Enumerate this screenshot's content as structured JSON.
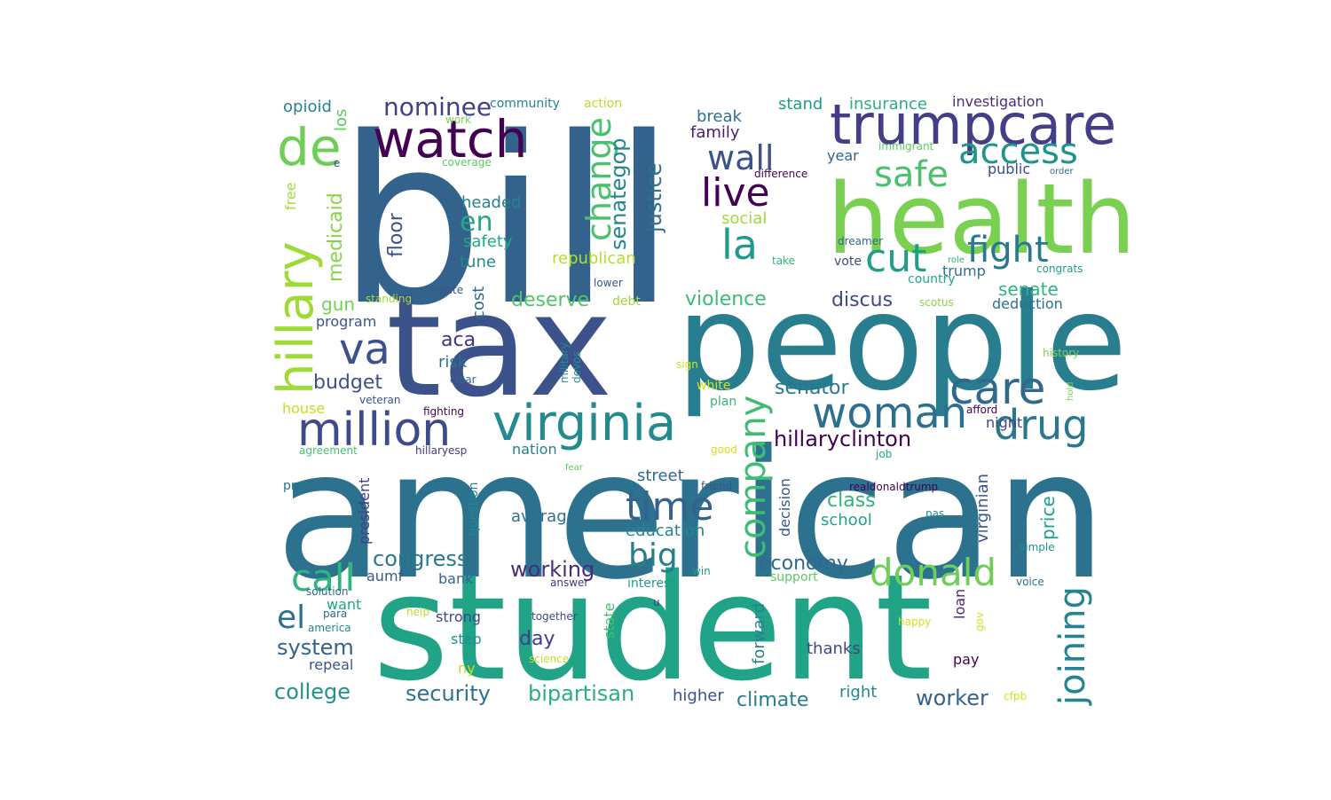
{
  "words": [
    {
      "text": "bill",
      "color": "#33638d"
    },
    {
      "text": "american",
      "color": "#2c728e"
    },
    {
      "text": "student",
      "color": "#20a386"
    },
    {
      "text": "tax",
      "color": "#3b528b"
    },
    {
      "text": "people",
      "color": "#287d8e"
    },
    {
      "text": "health",
      "color": "#7ad151"
    },
    {
      "text": "trumpcare",
      "color": "#433e85"
    },
    {
      "text": "watch",
      "color": "#440154"
    },
    {
      "text": "virginia",
      "color": "#238a8d"
    },
    {
      "text": "million",
      "color": "#3e4a89"
    },
    {
      "text": "woman",
      "color": "#2d708e"
    },
    {
      "text": "care",
      "color": "#31688e"
    },
    {
      "text": "de",
      "color": "#6ece58"
    },
    {
      "text": "access",
      "color": "#1f948c"
    },
    {
      "text": "safe",
      "color": "#4ac16d"
    },
    {
      "text": "live",
      "color": "#440154"
    },
    {
      "text": "la",
      "color": "#1e9b8a"
    },
    {
      "text": "cut",
      "color": "#1f9e89"
    },
    {
      "text": "fight",
      "color": "#2a788e"
    },
    {
      "text": "drug",
      "color": "#2a788e"
    },
    {
      "text": "va",
      "color": "#3b528b"
    },
    {
      "text": "hillary",
      "color": "#a0da39"
    },
    {
      "text": "company",
      "color": "#3fbc73"
    },
    {
      "text": "change",
      "color": "#4ac16d"
    },
    {
      "text": "time",
      "color": "#34618d"
    },
    {
      "text": "donald",
      "color": "#6ece58"
    },
    {
      "text": "call",
      "color": "#2fb47c"
    },
    {
      "text": "joining",
      "color": "#25858e"
    },
    {
      "text": "big",
      "color": "#277f8e"
    },
    {
      "text": "el",
      "color": "#2d708e"
    },
    {
      "text": "wall",
      "color": "#3b528b"
    },
    {
      "text": "en",
      "color": "#22a884"
    },
    {
      "text": "nominee",
      "color": "#424186"
    },
    {
      "text": "senategop",
      "color": "#25858e"
    },
    {
      "text": "justice",
      "color": "#2c728e"
    },
    {
      "text": "hillaryclinton",
      "color": "#440154"
    },
    {
      "text": "congress",
      "color": "#2a788e"
    },
    {
      "text": "working",
      "color": "#472d7b"
    },
    {
      "text": "economy",
      "color": "#31688e"
    },
    {
      "text": "security",
      "color": "#2c728e"
    },
    {
      "text": "bipartisan",
      "color": "#2ab07f"
    },
    {
      "text": "college",
      "color": "#21918c"
    },
    {
      "text": "climate",
      "color": "#287c8e"
    },
    {
      "text": "worker",
      "color": "#33638d"
    },
    {
      "text": "system",
      "color": "#33638d"
    },
    {
      "text": "violence",
      "color": "#3bbb75"
    },
    {
      "text": "deserve",
      "color": "#52c569"
    },
    {
      "text": "discus",
      "color": "#3e4989"
    },
    {
      "text": "senate",
      "color": "#2fb47c"
    },
    {
      "text": "senator",
      "color": "#2a788e"
    },
    {
      "text": "budget",
      "color": "#3b528b"
    },
    {
      "text": "day",
      "color": "#433e85"
    },
    {
      "text": "aca",
      "color": "#46327e"
    },
    {
      "text": "floor",
      "color": "#3b528b"
    },
    {
      "text": "headed",
      "color": "#26828e"
    },
    {
      "text": "class",
      "color": "#2fb47c"
    },
    {
      "text": "medicaid",
      "color": "#86d549"
    },
    {
      "text": "street",
      "color": "#31688e"
    },
    {
      "text": "average",
      "color": "#2d708e"
    },
    {
      "text": "education",
      "color": "#25858e"
    },
    {
      "text": "price",
      "color": "#1f9e89"
    },
    {
      "text": "virginian",
      "color": "#3b528b"
    },
    {
      "text": "safety",
      "color": "#22a884"
    },
    {
      "text": "tune",
      "color": "#23898e"
    },
    {
      "text": "republican",
      "color": "#b5de2b"
    },
    {
      "text": "cost",
      "color": "#31688e"
    },
    {
      "text": "gun",
      "color": "#73d056"
    },
    {
      "text": "program",
      "color": "#39568c"
    },
    {
      "text": "risk",
      "color": "#2c728e"
    },
    {
      "text": "stand",
      "color": "#1e9b8a"
    },
    {
      "text": "insurance",
      "color": "#28ae80"
    },
    {
      "text": "investigation",
      "color": "#472d7b"
    },
    {
      "text": "opioid",
      "color": "#26828e"
    },
    {
      "text": "los",
      "color": "#5ec962"
    },
    {
      "text": "break",
      "color": "#2d708e"
    },
    {
      "text": "family",
      "color": "#481f70"
    },
    {
      "text": "year",
      "color": "#33638d"
    },
    {
      "text": "public",
      "color": "#3e4a89"
    },
    {
      "text": "social",
      "color": "#a0da39"
    },
    {
      "text": "trump",
      "color": "#2d708e"
    },
    {
      "text": "deduction",
      "color": "#2c728e"
    },
    {
      "text": "night",
      "color": "#414487"
    },
    {
      "text": "school",
      "color": "#20a386"
    },
    {
      "text": "decision",
      "color": "#39568c"
    },
    {
      "text": "forward",
      "color": "#26828e"
    },
    {
      "text": "thanks",
      "color": "#3e4989"
    },
    {
      "text": "right",
      "color": "#23898e"
    },
    {
      "text": "higher",
      "color": "#3b528b"
    },
    {
      "text": "pay",
      "color": "#440154"
    },
    {
      "text": "loan",
      "color": "#482878"
    },
    {
      "text": "interest",
      "color": "#1f9e89"
    },
    {
      "text": "support",
      "color": "#5ec962"
    },
    {
      "text": "bank",
      "color": "#31688e"
    },
    {
      "text": "aumf",
      "color": "#38598c"
    },
    {
      "text": "want",
      "color": "#20a386"
    },
    {
      "text": "strong",
      "color": "#3e4989"
    },
    {
      "text": "step",
      "color": "#21918c"
    },
    {
      "text": "repeal",
      "color": "#3b528b"
    },
    {
      "text": "ny",
      "color": "#c2df23"
    },
    {
      "text": "state",
      "color": "#44bf70"
    },
    {
      "text": "president",
      "color": "#433e85"
    },
    {
      "text": "question",
      "color": "#25858e"
    },
    {
      "text": "nation",
      "color": "#287d8e"
    },
    {
      "text": "house",
      "color": "#c2df23"
    },
    {
      "text": "protect",
      "color": "#2c728e"
    },
    {
      "text": "free",
      "color": "#a0da39"
    },
    {
      "text": "community",
      "color": "#26828e"
    },
    {
      "text": "action",
      "color": "#b5de2b"
    },
    {
      "text": "white",
      "color": "#d2e21b"
    },
    {
      "text": "plan",
      "color": "#35b779"
    },
    {
      "text": "debt",
      "color": "#a0da39"
    },
    {
      "text": "good",
      "color": "#d2e21b"
    },
    {
      "text": "job",
      "color": "#20a386"
    },
    {
      "text": "history",
      "color": "#7ad151"
    },
    {
      "text": "country",
      "color": "#22a884"
    },
    {
      "text": "vote",
      "color": "#3e4989"
    },
    {
      "text": "dreamer",
      "color": "#31688e"
    },
    {
      "text": "congrats",
      "color": "#1f9e89"
    },
    {
      "text": "role",
      "color": "#2fb47c"
    },
    {
      "text": "take",
      "color": "#2fb47c"
    },
    {
      "text": "scotus",
      "color": "#86d549"
    },
    {
      "text": "immigrant",
      "color": "#5ec962"
    },
    {
      "text": "coverage",
      "color": "#5ec962"
    },
    {
      "text": "difference",
      "color": "#440154"
    },
    {
      "text": "order",
      "color": "#31688e"
    },
    {
      "text": "work",
      "color": "#7ad151"
    },
    {
      "text": "e",
      "color": "#3b528b"
    },
    {
      "text": "military",
      "color": "#238a8d"
    },
    {
      "text": "devos",
      "color": "#21918c"
    },
    {
      "text": "clear",
      "color": "#31688e"
    },
    {
      "text": "veteran",
      "color": "#39568c"
    },
    {
      "text": "fighting",
      "color": "#440154"
    },
    {
      "text": "agreement",
      "color": "#44bf70"
    },
    {
      "text": "hillaryesp",
      "color": "#443983"
    },
    {
      "text": "fear",
      "color": "#5ec962"
    },
    {
      "text": "friend",
      "color": "#39568c"
    },
    {
      "text": "realdonaldtrump",
      "color": "#440154"
    },
    {
      "text": "pas",
      "color": "#21918c"
    },
    {
      "text": "simple",
      "color": "#21918c"
    },
    {
      "text": "win",
      "color": "#1f9e89"
    },
    {
      "text": "voice",
      "color": "#2d708e"
    },
    {
      "text": "answer",
      "color": "#46327e"
    },
    {
      "text": "u",
      "color": "#3e4989"
    },
    {
      "text": "solution",
      "color": "#31688e"
    },
    {
      "text": "para",
      "color": "#31688e"
    },
    {
      "text": "america",
      "color": "#26828e"
    },
    {
      "text": "help",
      "color": "#b5de2b"
    },
    {
      "text": "together",
      "color": "#3e4989"
    },
    {
      "text": "science",
      "color": "#c2df23"
    },
    {
      "text": "happy",
      "color": "#d2e21b"
    },
    {
      "text": "gov",
      "color": "#d2e21b"
    },
    {
      "text": "cfpb",
      "color": "#d2e21b"
    },
    {
      "text": "afford",
      "color": "#440154"
    },
    {
      "text": "hold",
      "color": "#7ad151"
    },
    {
      "text": "sign",
      "color": "#d2e21b"
    },
    {
      "text": "standing",
      "color": "#a0da39"
    },
    {
      "text": "create",
      "color": "#3b528b"
    },
    {
      "text": "lower",
      "color": "#39568c"
    }
  ]
}
